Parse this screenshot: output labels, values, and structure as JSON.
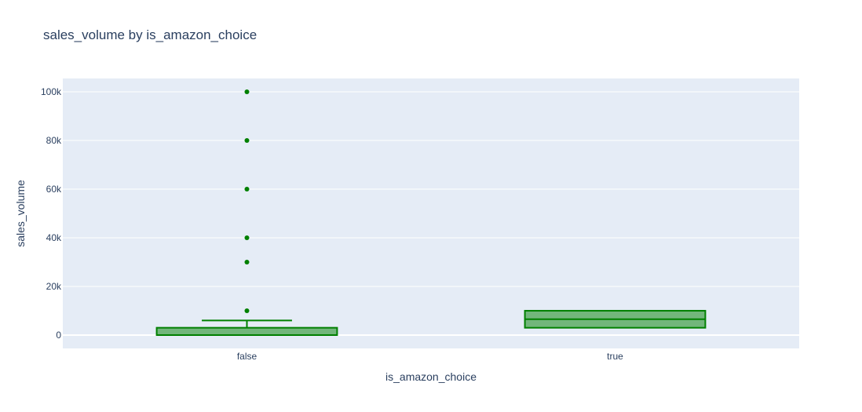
{
  "chart_data": {
    "type": "box",
    "title": "sales_volume by is_amazon_choice",
    "xlabel": "is_amazon_choice",
    "ylabel": "sales_volume",
    "categories": [
      "false",
      "true"
    ],
    "ylim": [
      -5500,
      105500
    ],
    "yticks": [
      0,
      20000,
      40000,
      60000,
      80000,
      100000
    ],
    "ytick_labels": [
      "0",
      "20k",
      "40k",
      "60k",
      "80k",
      "100k"
    ],
    "grid": true,
    "boxes": [
      {
        "category": "false",
        "lower_fence": 0,
        "q1": 0,
        "median": 0,
        "q3": 3000,
        "upper_fence": 6000,
        "outliers": [
          10000,
          30000,
          40000,
          60000,
          80000,
          100000
        ]
      },
      {
        "category": "true",
        "lower_fence": 3000,
        "q1": 3000,
        "median": 6500,
        "q3": 10000,
        "upper_fence": 10000,
        "outliers": []
      }
    ],
    "colors": {
      "line": "#008000",
      "fill": "rgba(0,128,0,0.5)",
      "plot_bg": "#e5ecf6",
      "grid": "#ffffff",
      "text": "#2a3f5f"
    }
  }
}
